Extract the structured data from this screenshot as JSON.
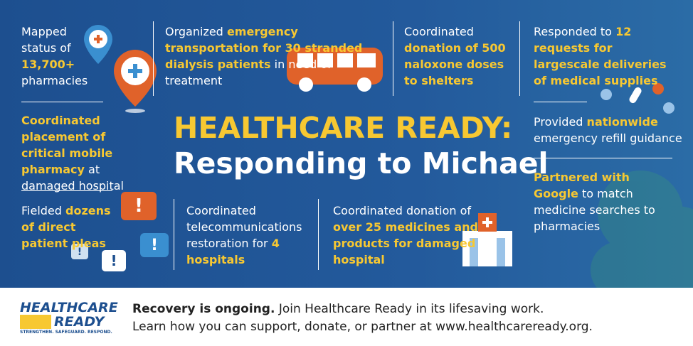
{
  "title": {
    "line1": "HEALTHCARE READY:",
    "line2": "Responding to Michael"
  },
  "blocks": [
    {
      "segments": [
        {
          "text": "Mapped status of",
          "highlight": false
        },
        {
          "text": "13,700+",
          "highlight": true
        },
        {
          "text": "pharmacies",
          "highlight": false
        }
      ]
    },
    {
      "segments": [
        {
          "text": "Organized",
          "highlight": false
        },
        {
          "text": "emergency transportation for 30 stranded",
          "highlight": true
        },
        {
          "text": "dialysis patients",
          "highlight": true
        },
        {
          "text": "in need of treatment",
          "highlight": false
        }
      ]
    },
    {
      "segments": [
        {
          "text": "Coordinated",
          "highlight": false
        },
        {
          "text": "donation of 500 naloxone doses to shelters",
          "highlight": true
        }
      ]
    },
    {
      "segments": [
        {
          "text": "Responded to",
          "highlight": false
        },
        {
          "text": "12 requests for largescale deliveries of medical supplies",
          "highlight": true
        }
      ]
    },
    {
      "segments": [
        {
          "text": "Coordinated placement of critical mobile pharmacy",
          "highlight": true
        },
        {
          "text": "at damaged hospital",
          "highlight": false
        }
      ]
    },
    {
      "segments": [
        {
          "text": "Provided",
          "highlight": false
        },
        {
          "text": "nationwide",
          "highlight": true
        },
        {
          "text": "emergency refill guidance",
          "highlight": false
        }
      ]
    },
    {
      "segments": [
        {
          "text": "Partnered with Google",
          "highlight": true
        },
        {
          "text": "to match medicine searches to pharmacies",
          "highlight": false
        }
      ]
    },
    {
      "segments": [
        {
          "text": "Fielded",
          "highlight": false
        },
        {
          "text": "dozens of direct patient pleas",
          "highlight": true
        }
      ]
    },
    {
      "segments": [
        {
          "text": "Coordinated telecommunications restoration for",
          "highlight": false
        },
        {
          "text": "4 hospitals",
          "highlight": true
        }
      ]
    },
    {
      "segments": [
        {
          "text": "Coordinated donation of",
          "highlight": false
        },
        {
          "text": "over 25 medicines and products for damaged hospital",
          "highlight": true
        }
      ]
    }
  ],
  "footer": {
    "logo": {
      "line1": "HEALTHCARE",
      "line2": "READY",
      "tagline": "STRENGTHEN. SAFEGUARD. RESPOND."
    },
    "lead": "Recovery is ongoing.",
    "line1": "Join Healthcare Ready in its lifesaving work.",
    "line2": "Learn how you can support, donate, or partner at www.healthcareready.org."
  }
}
